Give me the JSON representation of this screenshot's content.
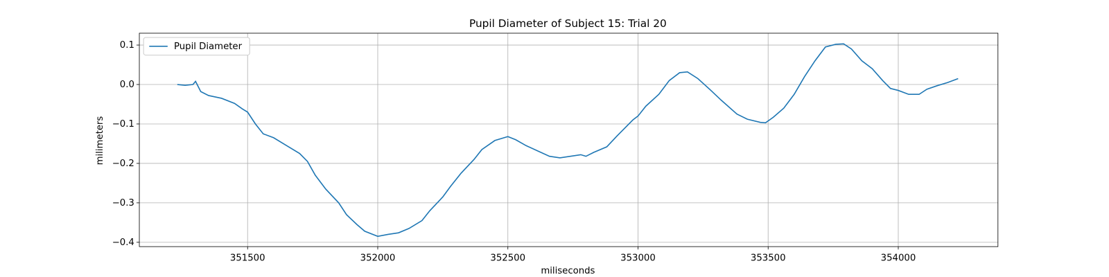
{
  "chart_data": {
    "type": "line",
    "title": "Pupil Diameter of Subject 15: Trial 20",
    "xlabel": "miliseconds",
    "ylabel": "milimeters",
    "x": [
      351230,
      351260,
      351290,
      351300,
      351320,
      351350,
      351400,
      351450,
      351480,
      351500,
      351530,
      351560,
      351600,
      351650,
      351700,
      351730,
      351760,
      351800,
      351850,
      351880,
      351920,
      351950,
      352000,
      352040,
      352080,
      352120,
      352170,
      352200,
      352250,
      352280,
      352320,
      352370,
      352400,
      352450,
      352500,
      352530,
      352570,
      352620,
      352660,
      352700,
      352740,
      352780,
      352800,
      352830,
      352880,
      352920,
      352950,
      352980,
      353000,
      353030,
      353080,
      353120,
      353160,
      353190,
      353230,
      353280,
      353320,
      353380,
      353420,
      353470,
      353490,
      353520,
      353560,
      353600,
      353640,
      353680,
      353720,
      353760,
      353790,
      353820,
      353860,
      353900,
      353940,
      353970,
      354000,
      354040,
      354080,
      354110,
      354150,
      354190,
      354230
    ],
    "series": [
      {
        "name": "Pupil Diameter",
        "color": "#1f77b4",
        "values": [
          0.0,
          -0.002,
          0.0,
          0.008,
          -0.018,
          -0.028,
          -0.035,
          -0.048,
          -0.062,
          -0.07,
          -0.1,
          -0.125,
          -0.135,
          -0.155,
          -0.175,
          -0.195,
          -0.23,
          -0.265,
          -0.3,
          -0.33,
          -0.355,
          -0.372,
          -0.385,
          -0.38,
          -0.376,
          -0.365,
          -0.345,
          -0.32,
          -0.285,
          -0.258,
          -0.225,
          -0.19,
          -0.165,
          -0.142,
          -0.132,
          -0.14,
          -0.155,
          -0.17,
          -0.182,
          -0.186,
          -0.182,
          -0.178,
          -0.182,
          -0.172,
          -0.158,
          -0.13,
          -0.11,
          -0.09,
          -0.08,
          -0.055,
          -0.025,
          0.01,
          0.03,
          0.032,
          0.015,
          -0.015,
          -0.04,
          -0.075,
          -0.088,
          -0.096,
          -0.097,
          -0.083,
          -0.06,
          -0.025,
          0.02,
          0.06,
          0.095,
          0.102,
          0.103,
          0.09,
          0.06,
          0.04,
          0.01,
          -0.01,
          -0.015,
          -0.025,
          -0.025,
          -0.012,
          -0.003,
          0.005,
          0.015
        ]
      }
    ],
    "xlim": [
      351084,
      354383
    ],
    "ylim": [
      -0.411,
      0.13
    ],
    "xticks": [
      351500,
      352000,
      352500,
      353000,
      353500,
      354000
    ],
    "yticks": [
      0.1,
      {
        "value": 0,
        "label": "0.0"
      },
      {
        "value": -0.1,
        "label": "−0.1"
      },
      {
        "value": -0.2,
        "label": "−0.2"
      },
      {
        "value": -0.3,
        "label": "−0.3"
      },
      {
        "value": -0.4,
        "label": "−0.4"
      }
    ],
    "grid": true,
    "legend": "upper left"
  }
}
